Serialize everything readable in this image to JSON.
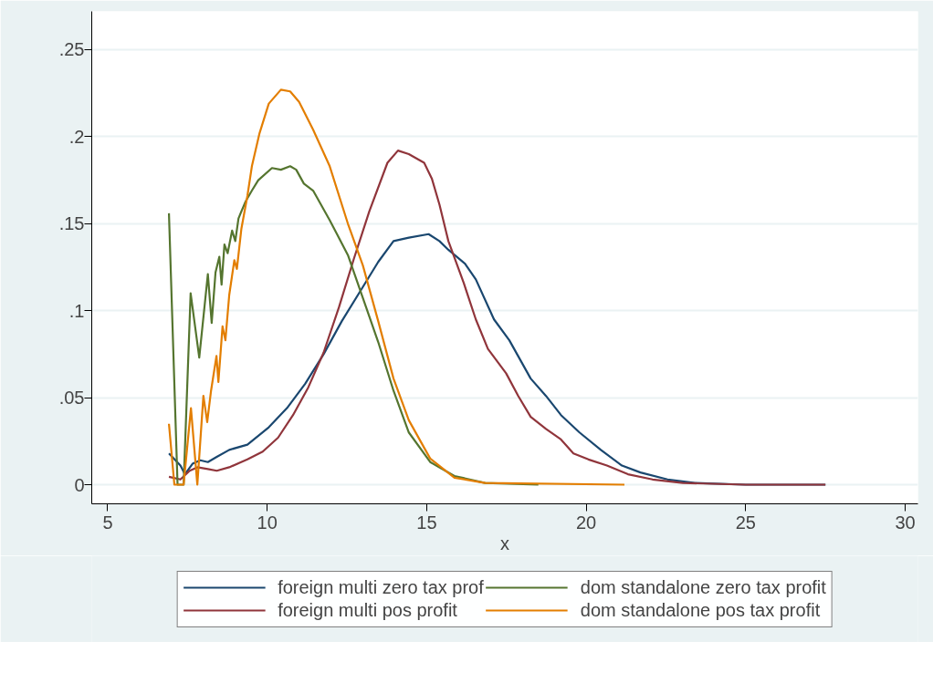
{
  "chart_data": {
    "type": "line",
    "xlabel": "x",
    "xlim": [
      4.5,
      30.4
    ],
    "ylim": [
      -0.011,
      0.272
    ],
    "xticks": [
      5,
      10,
      15,
      20,
      25,
      30
    ],
    "yticks": [
      0,
      {
        "value": 0.05,
        "label": ".05"
      },
      {
        "value": 0.1,
        "label": ".1"
      },
      {
        "value": 0.15,
        "label": ".15"
      },
      {
        "value": 0.2,
        "label": ".2"
      },
      {
        "value": 0.25,
        "label": ".25"
      }
    ],
    "grid": "y",
    "legend": "bottom",
    "line_style": "solid",
    "marker": "none",
    "series": [
      {
        "name": "foreign multi zero tax prof",
        "color": "#1a476f",
        "x": [
          6.92,
          7.28,
          7.42,
          7.66,
          7.9,
          8.14,
          8.42,
          8.81,
          9.38,
          10.05,
          10.62,
          11.19,
          11.77,
          12.34,
          12.91,
          13.48,
          13.96,
          14.44,
          15.06,
          15.4,
          15.68,
          16.2,
          16.54,
          17.11,
          17.59,
          18.26,
          18.74,
          19.21,
          19.79,
          20.46,
          21.12,
          21.7,
          22.55,
          23.41,
          25,
          27.5
        ],
        "values": [
          0.018,
          0.011,
          0.006,
          0.012,
          0.014,
          0.013,
          0.016,
          0.02,
          0.023,
          0.033,
          0.044,
          0.058,
          0.075,
          0.094,
          0.111,
          0.128,
          0.14,
          0.142,
          0.144,
          0.14,
          0.135,
          0.127,
          0.118,
          0.095,
          0.083,
          0.061,
          0.051,
          0.04,
          0.03,
          0.02,
          0.011,
          0.007,
          0.003,
          0.001,
          0,
          0
        ]
      },
      {
        "name": "foreign multi pos profit",
        "color": "#90353b",
        "x": [
          6.92,
          7.28,
          7.57,
          7.81,
          8.14,
          8.42,
          8.81,
          9.38,
          9.86,
          10.34,
          10.81,
          11.29,
          11.77,
          12.25,
          12.72,
          13.2,
          13.77,
          14.1,
          14.44,
          14.92,
          15.16,
          15.4,
          15.68,
          16.16,
          16.54,
          16.92,
          17.49,
          17.87,
          18.26,
          18.74,
          19.21,
          19.6,
          20.07,
          20.65,
          21.31,
          22.08,
          23.03,
          25,
          27.5
        ],
        "values": [
          0.0045,
          0.003,
          0.008,
          0.01,
          0.009,
          0.008,
          0.01,
          0.0145,
          0.019,
          0.027,
          0.04,
          0.056,
          0.076,
          0.102,
          0.13,
          0.157,
          0.185,
          0.192,
          0.19,
          0.185,
          0.176,
          0.161,
          0.14,
          0.116,
          0.095,
          0.078,
          0.064,
          0.051,
          0.039,
          0.032,
          0.026,
          0.018,
          0.0145,
          0.011,
          0.006,
          0.003,
          0.001,
          0,
          0
        ]
      },
      {
        "name": "dom standalone zero tax profit",
        "color": "#55752f",
        "x": [
          6.92,
          7.19,
          7.38,
          7.6,
          7.87,
          8.14,
          8.26,
          8.38,
          8.5,
          8.57,
          8.66,
          8.76,
          8.9,
          9.0,
          9.1,
          9.19,
          9.33,
          9.52,
          9.72,
          10.15,
          10.43,
          10.72,
          10.91,
          11.15,
          11.44,
          11.96,
          12.53,
          13.1,
          13.48,
          13.96,
          14.44,
          15.11,
          15.87,
          16.83,
          18.5
        ],
        "values": [
          0.156,
          0,
          0,
          0.11,
          0.073,
          0.121,
          0.093,
          0.122,
          0.131,
          0.115,
          0.138,
          0.133,
          0.146,
          0.14,
          0.153,
          0.157,
          0.163,
          0.169,
          0.175,
          0.182,
          0.181,
          0.183,
          0.181,
          0.173,
          0.169,
          0.152,
          0.132,
          0.102,
          0.082,
          0.054,
          0.03,
          0.013,
          0.005,
          0.001,
          0
        ]
      },
      {
        "name": "dom standalone pos tax profit",
        "color": "#e37e00",
        "x": [
          6.92,
          7.09,
          7.38,
          7.61,
          7.81,
          8.0,
          8.12,
          8.24,
          8.41,
          8.47,
          8.6,
          8.69,
          8.81,
          8.97,
          9.05,
          9.19,
          9.38,
          9.52,
          9.76,
          10.05,
          10.43,
          10.72,
          11.0,
          11.44,
          11.96,
          12.53,
          13.0,
          13.48,
          13.96,
          14.44,
          15.11,
          15.87,
          16.83,
          21.2
        ],
        "values": [
          0.035,
          0,
          0,
          0.044,
          0,
          0.051,
          0.036,
          0.054,
          0.074,
          0.059,
          0.091,
          0.083,
          0.109,
          0.129,
          0.124,
          0.147,
          0.166,
          0.183,
          0.202,
          0.219,
          0.227,
          0.226,
          0.22,
          0.204,
          0.183,
          0.15,
          0.126,
          0.094,
          0.061,
          0.037,
          0.015,
          0.004,
          0.001,
          0
        ]
      }
    ]
  }
}
